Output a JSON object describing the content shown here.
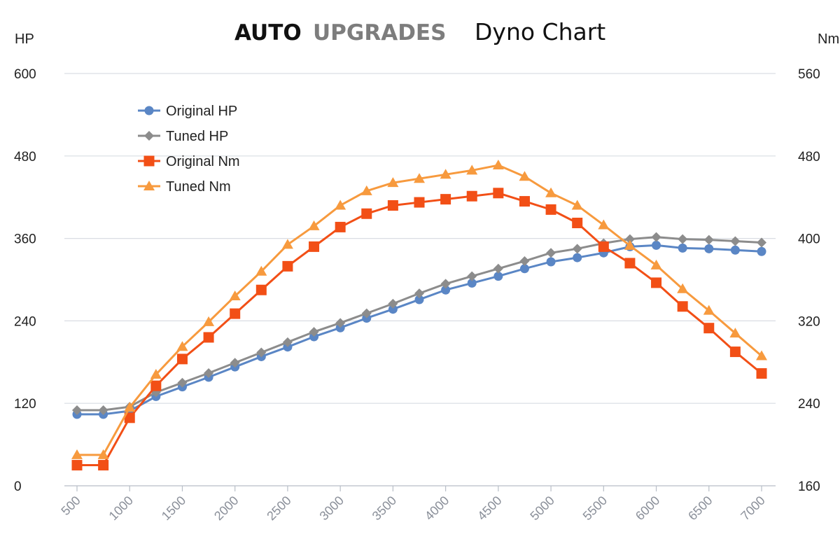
{
  "title": {
    "brand_part1": "AUTO",
    "brand_part2": "UPGRADES",
    "text": "Dyno Chart"
  },
  "colors": {
    "original_hp": "#5a86c5",
    "tuned_hp": "#8c8c8c",
    "original_nm": "#f24f16",
    "tuned_nm": "#f79a3e",
    "grid": "#d9dde3",
    "xtick": "#8a8f99"
  },
  "chart_data": {
    "type": "line",
    "title": "AUTO UPGRADES Dyno Chart",
    "xlabel": "",
    "ylabel_left": "HP",
    "ylabel_right": "Nm",
    "grid": true,
    "legend_position": "top-left",
    "x": [
      500,
      750,
      1000,
      1250,
      1500,
      1750,
      2000,
      2250,
      2500,
      2750,
      3000,
      3250,
      3500,
      3750,
      4000,
      4250,
      4500,
      4750,
      5000,
      5250,
      5500,
      5750,
      6000,
      6250,
      6500,
      6750,
      7000
    ],
    "x_tick_labels": [
      "500",
      "1000",
      "1500",
      "2000",
      "2500",
      "3000",
      "3500",
      "4000",
      "4500",
      "5000",
      "5500",
      "6000",
      "6500",
      "7000"
    ],
    "x_tick_values": [
      500,
      1000,
      1500,
      2000,
      2500,
      3000,
      3500,
      4000,
      4500,
      5000,
      5500,
      6000,
      6500,
      7000
    ],
    "y_left": {
      "label": "HP",
      "range": [
        0,
        600
      ],
      "ticks": [
        "0",
        "120",
        "240",
        "360",
        "480",
        "600"
      ],
      "tick_values": [
        0,
        120,
        240,
        360,
        480,
        600
      ]
    },
    "y_right": {
      "label": "Nm",
      "range": [
        160,
        560
      ],
      "ticks": [
        "160",
        "240",
        "320",
        "400",
        "480",
        "560"
      ],
      "tick_values": [
        160,
        240,
        320,
        400,
        480,
        560
      ]
    },
    "series": [
      {
        "name": "Original HP",
        "axis": "left",
        "marker": "circle",
        "color": "#5a86c5",
        "values": [
          104,
          104,
          109,
          130,
          144,
          158,
          173,
          188,
          202,
          217,
          230,
          244,
          257,
          271,
          285,
          295,
          305,
          316,
          326,
          332,
          339,
          348,
          350,
          346,
          345,
          343,
          341
        ]
      },
      {
        "name": "Tuned HP",
        "axis": "left",
        "marker": "diamond",
        "color": "#8c8c8c",
        "values": [
          110,
          110,
          115,
          136,
          150,
          164,
          179,
          194,
          209,
          224,
          237,
          251,
          265,
          280,
          294,
          305,
          316,
          327,
          339,
          345,
          353,
          359,
          362,
          359,
          358,
          356,
          354
        ]
      },
      {
        "name": "Original Nm",
        "axis": "right",
        "marker": "square",
        "color": "#f24f16",
        "values": [
          180,
          180,
          226,
          257,
          283,
          304,
          327,
          350,
          373,
          392,
          411,
          424,
          432,
          435,
          438,
          441,
          444,
          436,
          428,
          415,
          392,
          376,
          357,
          334,
          313,
          290,
          269
        ]
      },
      {
        "name": "Tuned Nm",
        "axis": "right",
        "marker": "triangle",
        "color": "#f79a3e",
        "values": [
          190,
          190,
          236,
          268,
          295,
          319,
          344,
          368,
          394,
          412,
          432,
          446,
          454,
          458,
          462,
          466,
          471,
          460,
          444,
          432,
          413,
          393,
          374,
          351,
          330,
          308,
          286
        ]
      }
    ]
  }
}
